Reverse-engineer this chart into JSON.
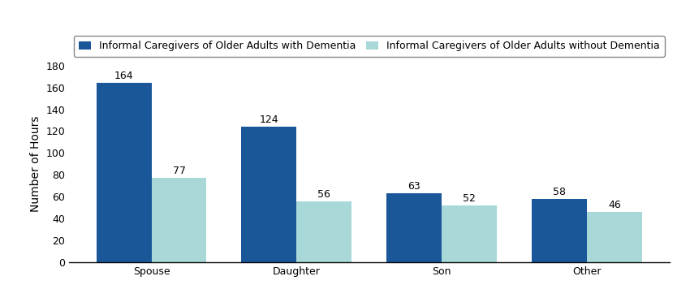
{
  "categories": [
    "Spouse",
    "Daughter",
    "Son",
    "Other"
  ],
  "dementia_values": [
    164,
    124,
    63,
    58
  ],
  "no_dementia_values": [
    77,
    56,
    52,
    46
  ],
  "dementia_color": "#1a5799",
  "no_dementia_color": "#a8d8d8",
  "ylabel": "Number of Hours",
  "ylim": [
    0,
    180
  ],
  "yticks": [
    0,
    20,
    40,
    60,
    80,
    100,
    120,
    140,
    160,
    180
  ],
  "legend_dementia": "Informal Caregivers of Older Adults with Dementia",
  "legend_no_dementia": "Informal Caregivers of Older Adults without Dementia",
  "bar_width": 0.38,
  "label_fontsize": 9,
  "axis_fontsize": 10,
  "legend_fontsize": 9,
  "tick_fontsize": 9
}
